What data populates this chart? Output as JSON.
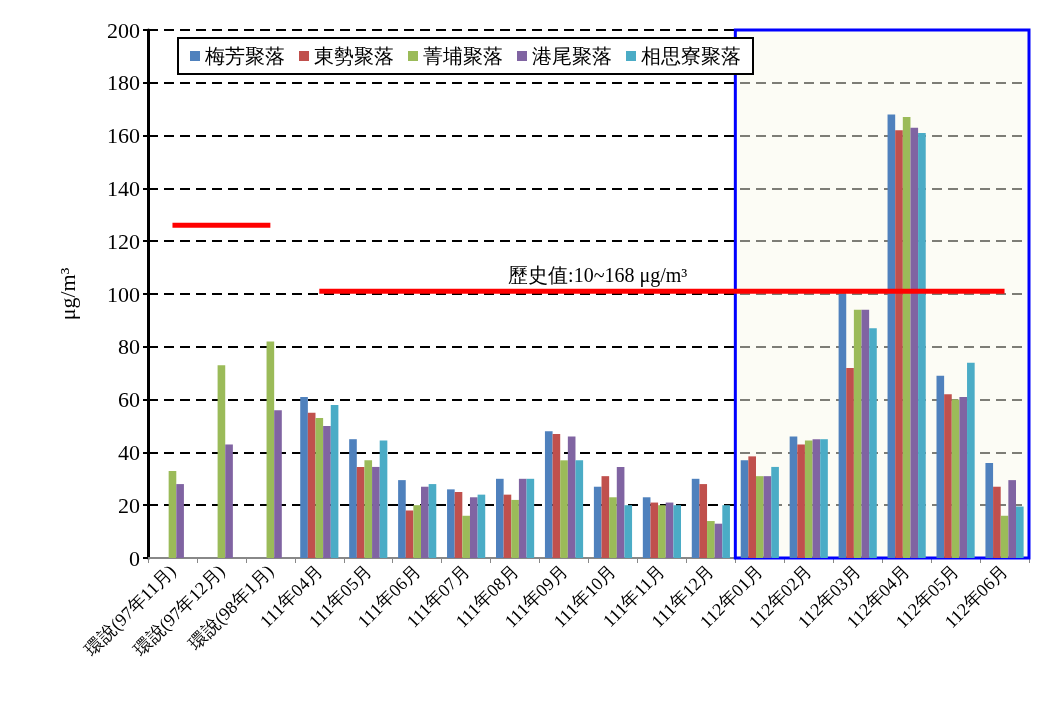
{
  "chart_data": {
    "type": "bar",
    "ylabel": "μg/m³",
    "categories": [
      "環說(97年11月)",
      "環說(97年12月)",
      "環說(98年1月)",
      "111年04月",
      "111年05月",
      "111年06月",
      "111年07月",
      "111年08月",
      "111年09月",
      "111年10月",
      "111年11月",
      "111年12月",
      "112年01月",
      "112年02月",
      "112年03月",
      "112年04月",
      "112年05月",
      "112年06月"
    ],
    "series": [
      {
        "name": "梅芳聚落",
        "color": "#4f81bd",
        "values": [
          null,
          null,
          null,
          61,
          45,
          29.5,
          26,
          30,
          48,
          27,
          23,
          30,
          37,
          46,
          100,
          168,
          69,
          36
        ]
      },
      {
        "name": "東勢聚落",
        "color": "#c0504d",
        "values": [
          null,
          null,
          null,
          55,
          34.5,
          18,
          25,
          24,
          47,
          31,
          21,
          28,
          38.5,
          43,
          72,
          162,
          62,
          27
        ]
      },
      {
        "name": "菁埔聚落",
        "color": "#9bbb59",
        "values": [
          33,
          73,
          82,
          53,
          37,
          20,
          16,
          22,
          37,
          23,
          20,
          14,
          31,
          44.5,
          94,
          167,
          60,
          16
        ]
      },
      {
        "name": "港尾聚落",
        "color": "#8064a2",
        "values": [
          28,
          43,
          56,
          50,
          34.5,
          27,
          23,
          30,
          46,
          34.5,
          21,
          13,
          31,
          45,
          94,
          163,
          61,
          29.5
        ]
      },
      {
        "name": "相思寮聚落",
        "color": "#4bacc6",
        "values": [
          null,
          null,
          null,
          58,
          44.5,
          28,
          24,
          30,
          37,
          20,
          20,
          20,
          34.5,
          45,
          87,
          161,
          74,
          19.5
        ]
      },
      {
        "type": "line",
        "color": "#ff0000",
        "values": [
          126,
          126,
          126,
          null,
          null,
          null,
          null,
          null,
          null,
          null,
          null,
          null,
          null,
          null,
          null,
          null,
          null,
          null
        ]
      },
      {
        "type": "line",
        "color": "#ff0000",
        "values": [
          null,
          null,
          null,
          101,
          101,
          101,
          101,
          101,
          101,
          101,
          101,
          101,
          101,
          101,
          101,
          101,
          101,
          101
        ]
      }
    ],
    "bands": [
      {
        "axis": "x",
        "from": "112年01月",
        "to": "112年06月",
        "color": "#0000ff"
      }
    ],
    "annotations": [
      {
        "text": "歷史值:10~168 μg/m³",
        "x": "111年10月",
        "y": 101
      }
    ],
    "ylim": [
      0,
      200
    ],
    "yticks": [
      0,
      20,
      40,
      60,
      80,
      100,
      120,
      140,
      160,
      180,
      200
    ],
    "grid": "y",
    "legend": "top"
  }
}
